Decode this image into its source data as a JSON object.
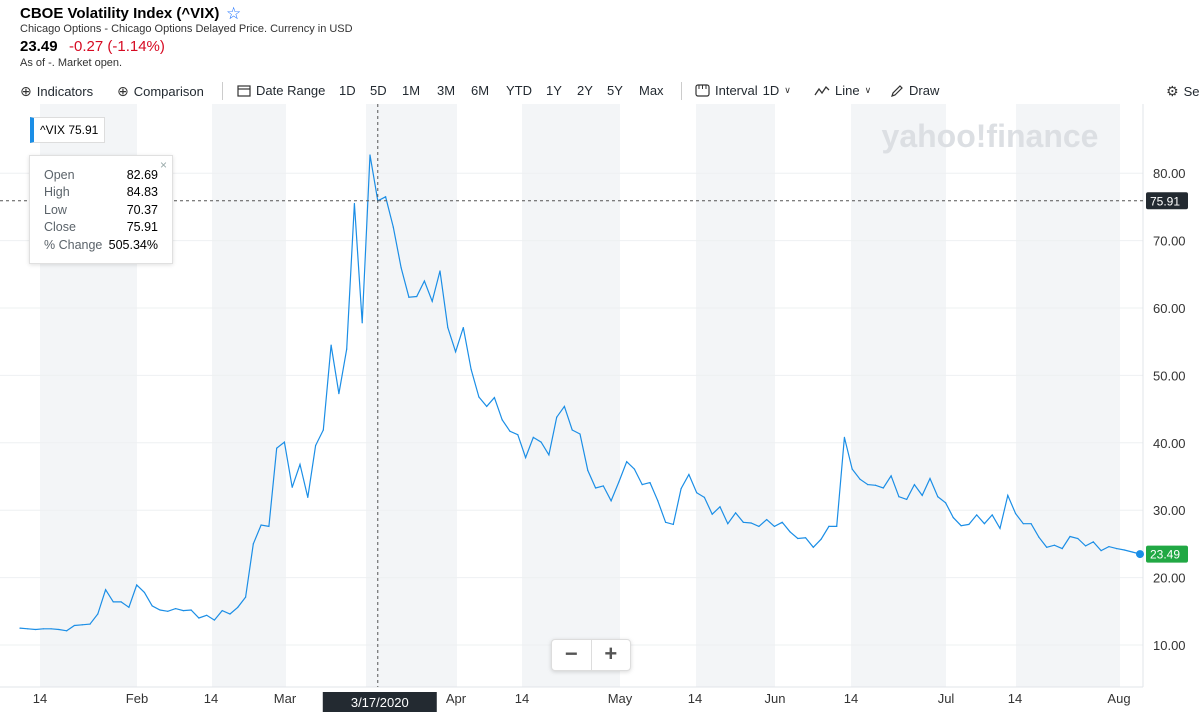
{
  "header": {
    "title": "CBOE Volatility Index (^VIX)",
    "star": "☆",
    "subtitle": "Chicago Options - Chicago Options Delayed Price. Currency in USD",
    "price": "23.49",
    "change": "-0.27 (-1.14%)",
    "as_of": "As of -. Market open."
  },
  "toolbar": {
    "indicators": "Indicators",
    "comparison": "Comparison",
    "date_range": "Date Range",
    "ranges": [
      "1D",
      "5D",
      "1M",
      "3M",
      "6M",
      "YTD",
      "1Y",
      "2Y",
      "5Y",
      "Max"
    ],
    "interval": "Interval",
    "interval_value": "1D",
    "chart_type": "Line",
    "draw": "Draw",
    "settings": "Se"
  },
  "legend": {
    "symbol": "^VIX",
    "value": "75.91"
  },
  "ohlc": {
    "labels": [
      "Open",
      "High",
      "Low",
      "Close",
      "% Change"
    ],
    "values": [
      "82.69",
      "84.83",
      "70.37",
      "75.91",
      "505.34%"
    ],
    "close_symbol": "×"
  },
  "watermark": "yahoo!finance",
  "zoom": {
    "minus": "−",
    "plus": "+"
  },
  "crosshair": {
    "date_label": "3/17/2020",
    "price_label": "75.91"
  },
  "last_price_label": "23.49",
  "colors": {
    "line": "#1b8ee6",
    "last_badge": "#21a844",
    "crosshair_badge": "#232a31",
    "negative": "#d60a22",
    "accent": "#0f69ff"
  },
  "chart_data": {
    "type": "line",
    "series": [
      {
        "values": [
          12.5,
          12.4,
          12.3,
          12.4,
          12.4,
          12.3,
          12.1,
          12.9,
          13.0,
          13.1,
          14.6,
          18.2,
          16.4,
          16.4,
          15.6,
          18.9,
          17.8,
          15.8,
          15.2,
          15.0,
          15.4,
          15.1,
          15.2,
          14.0,
          14.4,
          13.7,
          15.1,
          14.6,
          15.6,
          17.1,
          25.0,
          27.8,
          27.6,
          39.2,
          40.1,
          33.4,
          36.8,
          31.9,
          39.6,
          41.9,
          54.5,
          47.3,
          53.9,
          75.5,
          57.8,
          82.7,
          75.9,
          76.5,
          72.0,
          66.0,
          61.6,
          61.7,
          64.0,
          61.0,
          65.5,
          57.1,
          53.5,
          57.1,
          50.9,
          46.8,
          45.4,
          46.7,
          43.4,
          41.7,
          41.2,
          37.8,
          40.8,
          40.1,
          38.2,
          43.8,
          45.4,
          41.9,
          41.3,
          35.9,
          33.3,
          33.6,
          31.4,
          34.2,
          37.2,
          36.1,
          33.8,
          34.1,
          31.4,
          28.2,
          27.9,
          33.2,
          35.3,
          32.6,
          31.9,
          29.4,
          30.5,
          28.0,
          29.6,
          28.2,
          28.1,
          27.6,
          28.6,
          27.6,
          28.2,
          26.8,
          25.8,
          25.9,
          24.5,
          25.7,
          27.6,
          27.6,
          40.8,
          36.1,
          34.6,
          33.8,
          33.7,
          33.3,
          35.1,
          32.0,
          31.6,
          33.8,
          32.2,
          34.7,
          32.0,
          31.1,
          28.9,
          27.7,
          27.9,
          29.3,
          28.0,
          29.3,
          27.3,
          32.2,
          29.5,
          28.0,
          28.0,
          26.0,
          24.5,
          24.8,
          24.3,
          26.1,
          25.8,
          24.7,
          25.3,
          24.0,
          24.6,
          24.3,
          24.1,
          23.8,
          23.5
        ]
      }
    ],
    "x_tick_labels": [
      "14",
      "Feb",
      "14",
      "Mar",
      "Apr",
      "14",
      "May",
      "14",
      "Jun",
      "14",
      "Jul",
      "14",
      "Aug"
    ],
    "y_tick_labels": [
      "10.00",
      "20.00",
      "30.00",
      "40.00",
      "50.00",
      "60.00",
      "70.00",
      "80.00"
    ],
    "ylim": [
      5,
      88
    ],
    "highlight_point": {
      "date": "3/17/2020",
      "value": 75.91
    },
    "last_value": 23.49,
    "grid": true
  }
}
